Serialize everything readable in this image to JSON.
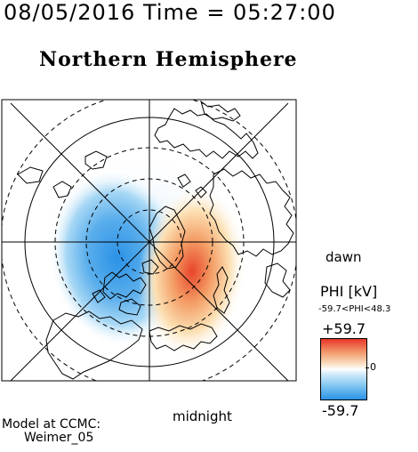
{
  "header": {
    "datetime": "08/05/2016 Time = 05:27:00"
  },
  "title": "Northern Hemisphere",
  "labels": {
    "dawn": "dawn",
    "midnight": "midnight"
  },
  "model": {
    "line1": "Model at CCMC:",
    "line2": "Weimer_05"
  },
  "colorbar": {
    "title": "PHI [kV]",
    "range_text": "-59.7<PHI<48.3",
    "max_label": "+59.7",
    "min_label": "-59.7",
    "zero_label": "0",
    "colors": {
      "max": "#e8352a",
      "zero": "#ffffff",
      "min": "#2b92e6"
    }
  },
  "map": {
    "style": "polar stereographic, north pole centered",
    "dusk_cell": "negative (blue)",
    "dawn_cell": "positive (red)"
  }
}
